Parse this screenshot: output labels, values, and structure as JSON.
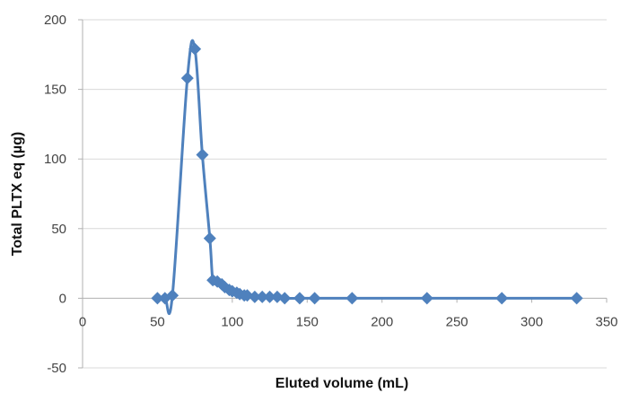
{
  "chart_data": {
    "type": "scatter",
    "title": "",
    "xlabel": "Eluted volume (mL)",
    "ylabel": "Total PLTX eq (µg)",
    "xlim": [
      0,
      350
    ],
    "ylim": [
      -50,
      200
    ],
    "x_ticks": [
      0,
      50,
      100,
      150,
      200,
      250,
      300,
      350
    ],
    "y_ticks": [
      -50,
      0,
      50,
      100,
      150,
      200
    ],
    "grid": "horizontal",
    "legend": "none",
    "series": [
      {
        "color": "#4f81bd",
        "marker": "diamond",
        "line": "smooth",
        "x": [
          50,
          55,
          60,
          70,
          75,
          80,
          85,
          87,
          90,
          93,
          95,
          98,
          100,
          103,
          105,
          108,
          110,
          115,
          120,
          125,
          130,
          135,
          145,
          155,
          180,
          230,
          280,
          330
        ],
        "y": [
          0,
          0,
          2,
          158,
          179,
          103,
          43,
          13,
          12,
          10,
          8,
          6,
          5,
          4,
          3,
          2,
          2,
          1,
          1,
          1,
          1,
          0,
          0,
          0,
          0,
          0,
          0,
          0
        ]
      }
    ]
  }
}
